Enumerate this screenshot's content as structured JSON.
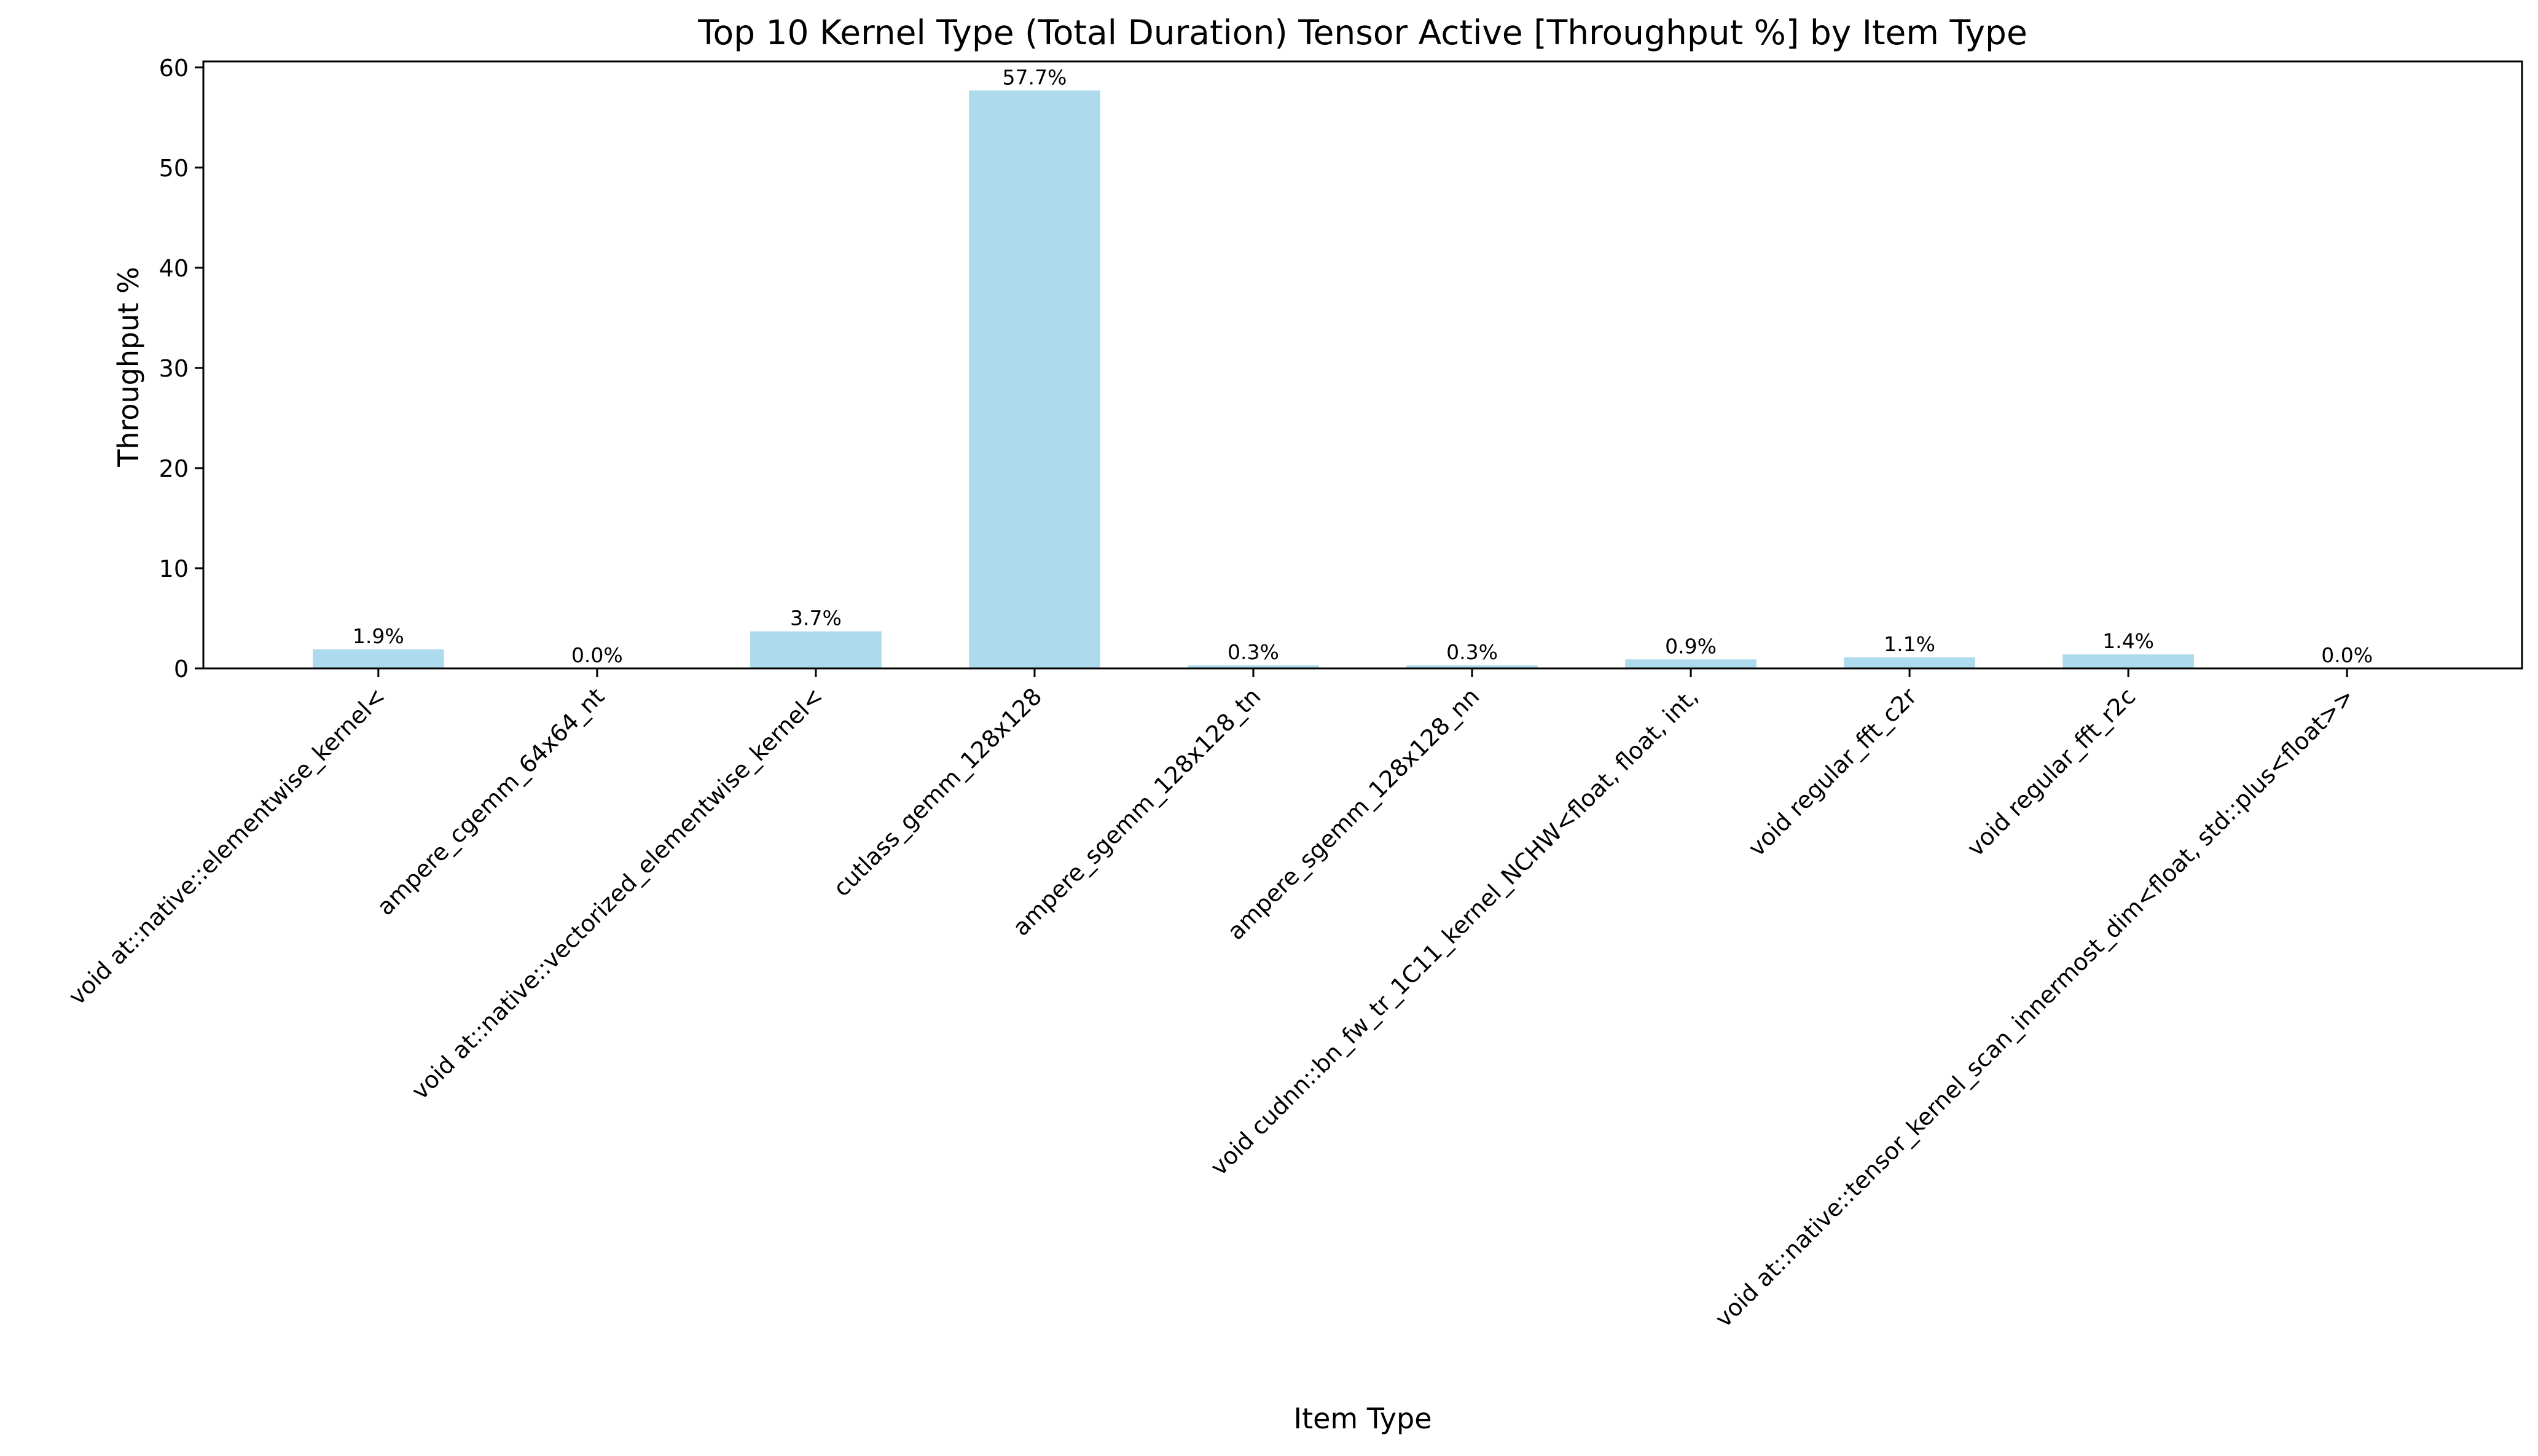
{
  "chart_data": {
    "type": "bar",
    "title": "Top 10 Kernel Type (Total Duration) Tensor Active [Throughput %] by Item Type",
    "xlabel": "Item Type",
    "ylabel": "Throughput %",
    "ylim": [
      0,
      60.6
    ],
    "yticks": [
      0,
      10,
      20,
      30,
      40,
      50,
      60
    ],
    "grid": false,
    "legend": "none",
    "bar_color": "#ADDBED",
    "categories": [
      "void at::native::elementwise_kernel<",
      "ampere_cgemm_64x64_nt",
      "void at::native::vectorized_elementwise_kernel<",
      "cutlass_gemm_128x128",
      "ampere_sgemm_128x128_tn",
      "ampere_sgemm_128x128_nn",
      "void cudnn::bn_fw_tr_1C11_kernel_NCHW<float, float, int,",
      "void regular_fft_c2r",
      "void regular_fft_r2c",
      "void at::native::tensor_kernel_scan_innermost_dim<float, std::plus<float>>"
    ],
    "values": [
      1.9,
      0.0,
      3.7,
      57.7,
      0.3,
      0.3,
      0.9,
      1.1,
      1.4,
      0.0
    ],
    "data_labels": [
      "1.9%",
      "0.0%",
      "3.7%",
      "57.7%",
      "0.3%",
      "0.3%",
      "0.9%",
      "1.1%",
      "1.4%",
      "0.0%"
    ]
  }
}
